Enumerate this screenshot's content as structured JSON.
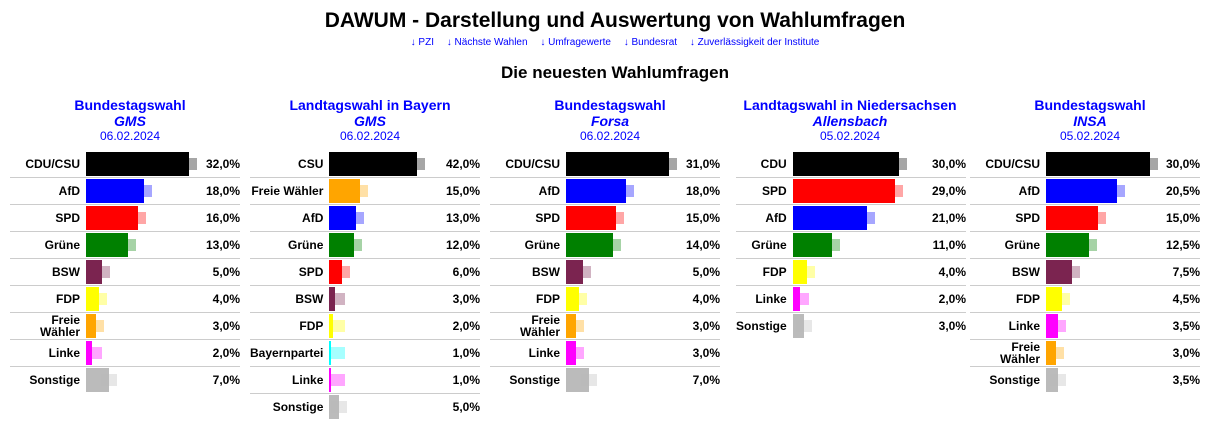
{
  "header": {
    "title": "DAWUM - Darstellung und Auswertung von Wahlumfragen",
    "nav": [
      "↓ PZI",
      "↓ Nächste Wahlen",
      "↓ Umfragewerte",
      "↓ Bundesrat",
      "↓ Zuverlässigkeit der Institute"
    ],
    "subtitle": "Die neuesten Wahlumfragen"
  },
  "colors": {
    "CDU/CSU": "#000000",
    "CSU": "#000000",
    "CDU": "#000000",
    "AfD": "#0000ff",
    "SPD": "#ff0000",
    "Grüne": "#008000",
    "BSW": "#7b2450",
    "FDP": "#ffff00",
    "Freie Wähler": "#ffa500",
    "Linke": "#ff00ff",
    "Sonstige": "#bbbbbb",
    "Bayernpartei": "#00ffff"
  },
  "polls": [
    {
      "title": "Bundestagswahl",
      "institute": "GMS",
      "date": "06.02.2024",
      "rows": [
        {
          "party": "CDU/CSU",
          "value": 32.0,
          "label": "32,0%"
        },
        {
          "party": "AfD",
          "value": 18.0,
          "label": "18,0%"
        },
        {
          "party": "SPD",
          "value": 16.0,
          "label": "16,0%"
        },
        {
          "party": "Grüne",
          "value": 13.0,
          "label": "13,0%"
        },
        {
          "party": "BSW",
          "value": 5.0,
          "label": "5,0%"
        },
        {
          "party": "FDP",
          "value": 4.0,
          "label": "4,0%"
        },
        {
          "party": "Freie Wähler",
          "value": 3.0,
          "label": "3,0%"
        },
        {
          "party": "Linke",
          "value": 2.0,
          "label": "2,0%"
        },
        {
          "party": "Sonstige",
          "value": 7.0,
          "label": "7,0%"
        }
      ]
    },
    {
      "title": "Landtagswahl in Bayern",
      "institute": "GMS",
      "date": "06.02.2024",
      "rows": [
        {
          "party": "CSU",
          "value": 42.0,
          "label": "42,0%"
        },
        {
          "party": "Freie Wähler",
          "value": 15.0,
          "label": "15,0%"
        },
        {
          "party": "AfD",
          "value": 13.0,
          "label": "13,0%"
        },
        {
          "party": "Grüne",
          "value": 12.0,
          "label": "12,0%"
        },
        {
          "party": "SPD",
          "value": 6.0,
          "label": "6,0%"
        },
        {
          "party": "BSW",
          "value": 3.0,
          "label": "3,0%"
        },
        {
          "party": "FDP",
          "value": 2.0,
          "label": "2,0%"
        },
        {
          "party": "Bayernpartei",
          "value": 1.0,
          "label": "1,0%"
        },
        {
          "party": "Linke",
          "value": 1.0,
          "label": "1,0%"
        },
        {
          "party": "Sonstige",
          "value": 5.0,
          "label": "5,0%"
        }
      ]
    },
    {
      "title": "Bundestagswahl",
      "institute": "Forsa",
      "date": "06.02.2024",
      "rows": [
        {
          "party": "CDU/CSU",
          "value": 31.0,
          "label": "31,0%"
        },
        {
          "party": "AfD",
          "value": 18.0,
          "label": "18,0%"
        },
        {
          "party": "SPD",
          "value": 15.0,
          "label": "15,0%"
        },
        {
          "party": "Grüne",
          "value": 14.0,
          "label": "14,0%"
        },
        {
          "party": "BSW",
          "value": 5.0,
          "label": "5,0%"
        },
        {
          "party": "FDP",
          "value": 4.0,
          "label": "4,0%"
        },
        {
          "party": "Freie Wähler",
          "value": 3.0,
          "label": "3,0%"
        },
        {
          "party": "Linke",
          "value": 3.0,
          "label": "3,0%"
        },
        {
          "party": "Sonstige",
          "value": 7.0,
          "label": "7,0%"
        }
      ]
    },
    {
      "title": "Landtagswahl in Niedersachsen",
      "institute": "Allensbach",
      "date": "05.02.2024",
      "rows": [
        {
          "party": "CDU",
          "value": 30.0,
          "label": "30,0%"
        },
        {
          "party": "SPD",
          "value": 29.0,
          "label": "29,0%"
        },
        {
          "party": "AfD",
          "value": 21.0,
          "label": "21,0%"
        },
        {
          "party": "Grüne",
          "value": 11.0,
          "label": "11,0%"
        },
        {
          "party": "FDP",
          "value": 4.0,
          "label": "4,0%"
        },
        {
          "party": "Linke",
          "value": 2.0,
          "label": "2,0%"
        },
        {
          "party": "Sonstige",
          "value": 3.0,
          "label": "3,0%"
        }
      ]
    },
    {
      "title": "Bundestagswahl",
      "institute": "INSA",
      "date": "05.02.2024",
      "rows": [
        {
          "party": "CDU/CSU",
          "value": 30.0,
          "label": "30,0%"
        },
        {
          "party": "AfD",
          "value": 20.5,
          "label": "20,5%"
        },
        {
          "party": "SPD",
          "value": 15.0,
          "label": "15,0%"
        },
        {
          "party": "Grüne",
          "value": 12.5,
          "label": "12,5%"
        },
        {
          "party": "BSW",
          "value": 7.5,
          "label": "7,5%"
        },
        {
          "party": "FDP",
          "value": 4.5,
          "label": "4,5%"
        },
        {
          "party": "Linke",
          "value": 3.5,
          "label": "3,5%"
        },
        {
          "party": "Freie Wähler",
          "value": 3.0,
          "label": "3,0%"
        },
        {
          "party": "Sonstige",
          "value": 3.5,
          "label": "3,5%"
        }
      ]
    }
  ]
}
